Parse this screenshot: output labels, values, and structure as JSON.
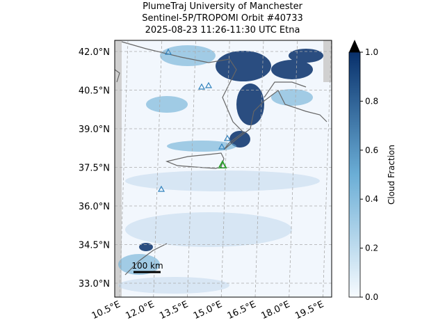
{
  "map": {
    "title": [
      "PlumeTraj    University of Manchester",
      "Sentinel-5P/TROPOMI Orbit #40733",
      "2025-08-23    11:26-11:30 UTC    Etna"
    ],
    "lat_ticks": [
      {
        "value": 42.0,
        "label": "42.0°N"
      },
      {
        "value": 40.5,
        "label": "40.5°N"
      },
      {
        "value": 39.0,
        "label": "39.0°N"
      },
      {
        "value": 37.5,
        "label": "37.5°N"
      },
      {
        "value": 36.0,
        "label": "36.0°N"
      },
      {
        "value": 34.5,
        "label": "34.5°N"
      },
      {
        "value": 33.0,
        "label": "33.0°N"
      }
    ],
    "lon_ticks": [
      {
        "value": 10.5,
        "label": "10.5°E"
      },
      {
        "value": 12.0,
        "label": "12.0°E"
      },
      {
        "value": 13.5,
        "label": "13.5°E"
      },
      {
        "value": 15.0,
        "label": "15.0°E"
      },
      {
        "value": 16.5,
        "label": "16.5°E"
      },
      {
        "value": 18.0,
        "label": "18.0°E"
      },
      {
        "value": 19.5,
        "label": "19.5°E"
      }
    ],
    "scale_bar": "100 km",
    "colorbar": {
      "label": "Cloud Fraction",
      "lim": [
        0,
        1
      ],
      "ticks": [
        {
          "value": 0,
          "label": "0.0"
        },
        {
          "value": 0.2,
          "label": "0.2"
        },
        {
          "value": 0.4,
          "label": "0.4"
        },
        {
          "value": 0.6,
          "label": "0.6"
        },
        {
          "value": 0.8,
          "label": "0.8"
        },
        {
          "value": 1,
          "label": "1.0"
        }
      ],
      "colors": [
        "#f7fbff",
        "#08306b"
      ]
    }
  }
}
